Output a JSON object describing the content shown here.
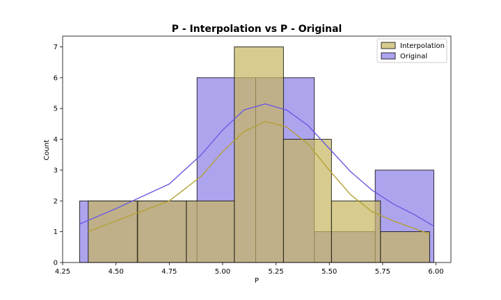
{
  "chart_data": {
    "type": "bar",
    "title": "P - Interpolation vs P - Original",
    "xlabel": "P",
    "ylabel": "Count",
    "xlim": [
      4.25,
      6.07
    ],
    "ylim": [
      0,
      7.35
    ],
    "xticks": [
      "4.25",
      "4.50",
      "4.75",
      "5.00",
      "5.25",
      "5.50",
      "5.75",
      "6.00"
    ],
    "yticks": [
      "0",
      "1",
      "2",
      "3",
      "4",
      "5",
      "6",
      "7"
    ],
    "grid": false,
    "legend_position": "top-right",
    "series": [
      {
        "name": "Original",
        "color": "#6a5ae0",
        "fill_opacity": 0.55,
        "bins": [
          {
            "x0": 4.33,
            "x1": 4.605,
            "count": 2
          },
          {
            "x0": 4.605,
            "x1": 4.88,
            "count": 2
          },
          {
            "x0": 4.88,
            "x1": 5.155,
            "count": 6
          },
          {
            "x0": 5.155,
            "x1": 5.43,
            "count": 6
          },
          {
            "x0": 5.43,
            "x1": 5.715,
            "count": 1
          },
          {
            "x0": 5.715,
            "x1": 5.99,
            "count": 3
          }
        ],
        "kde": [
          [
            4.33,
            1.25
          ],
          [
            4.5,
            1.75
          ],
          [
            4.75,
            2.55
          ],
          [
            4.9,
            3.5
          ],
          [
            5.0,
            4.3
          ],
          [
            5.1,
            4.95
          ],
          [
            5.2,
            5.15
          ],
          [
            5.3,
            4.95
          ],
          [
            5.4,
            4.45
          ],
          [
            5.5,
            3.7
          ],
          [
            5.6,
            2.95
          ],
          [
            5.7,
            2.35
          ],
          [
            5.8,
            1.9
          ],
          [
            5.9,
            1.55
          ],
          [
            5.99,
            1.18
          ]
        ]
      },
      {
        "name": "Interpolation",
        "color": "#c6b560",
        "line_color": "#b3a032",
        "fill_opacity": 0.7,
        "bins": [
          {
            "x0": 4.37,
            "x1": 4.6,
            "count": 2
          },
          {
            "x0": 4.6,
            "x1": 4.83,
            "count": 2
          },
          {
            "x0": 4.83,
            "x1": 5.055,
            "count": 2
          },
          {
            "x0": 5.055,
            "x1": 5.285,
            "count": 7
          },
          {
            "x0": 5.285,
            "x1": 5.51,
            "count": 4
          },
          {
            "x0": 5.51,
            "x1": 5.74,
            "count": 2
          },
          {
            "x0": 5.74,
            "x1": 5.97,
            "count": 1
          }
        ],
        "kde": [
          [
            4.37,
            1.0
          ],
          [
            4.5,
            1.35
          ],
          [
            4.75,
            2.0
          ],
          [
            4.9,
            2.8
          ],
          [
            5.0,
            3.6
          ],
          [
            5.1,
            4.25
          ],
          [
            5.2,
            4.58
          ],
          [
            5.3,
            4.4
          ],
          [
            5.4,
            3.85
          ],
          [
            5.5,
            3.0
          ],
          [
            5.6,
            2.2
          ],
          [
            5.7,
            1.65
          ],
          [
            5.8,
            1.35
          ],
          [
            5.9,
            1.1
          ],
          [
            5.97,
            0.93
          ]
        ]
      }
    ],
    "legend": [
      "Interpolation",
      "Original"
    ]
  }
}
